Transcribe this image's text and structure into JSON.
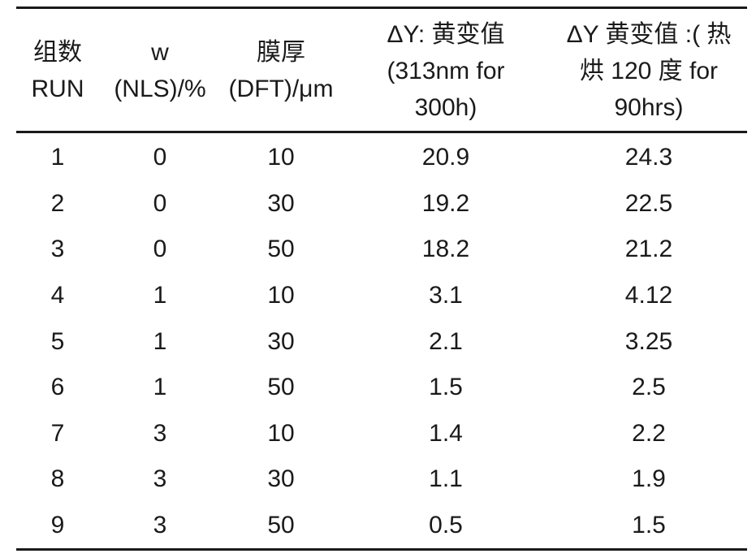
{
  "table": {
    "headers": [
      {
        "lines": [
          "组数",
          "RUN"
        ]
      },
      {
        "lines": [
          "w",
          "(NLS)/%"
        ]
      },
      {
        "lines": [
          "膜厚",
          "(DFT)/μm"
        ]
      },
      {
        "lines": [
          "ΔY: 黄变值",
          "(313nm for",
          "300h)"
        ]
      },
      {
        "lines": [
          "ΔY 黄变值 :( 热",
          "烘 120 度 for",
          "90hrs)"
        ]
      }
    ],
    "rows": [
      [
        "1",
        "0",
        "10",
        "20.9",
        "24.3"
      ],
      [
        "2",
        "0",
        "30",
        "19.2",
        "22.5"
      ],
      [
        "3",
        "0",
        "50",
        "18.2",
        "21.2"
      ],
      [
        "4",
        "1",
        "10",
        "3.1",
        "4.12"
      ],
      [
        "5",
        "1",
        "30",
        "2.1",
        "3.25"
      ],
      [
        "6",
        "1",
        "50",
        "1.5",
        "2.5"
      ],
      [
        "7",
        "3",
        "10",
        "1.4",
        "2.2"
      ],
      [
        "8",
        "3",
        "30",
        "1.1",
        "1.9"
      ],
      [
        "9",
        "3",
        "50",
        "0.5",
        "1.5"
      ]
    ]
  }
}
